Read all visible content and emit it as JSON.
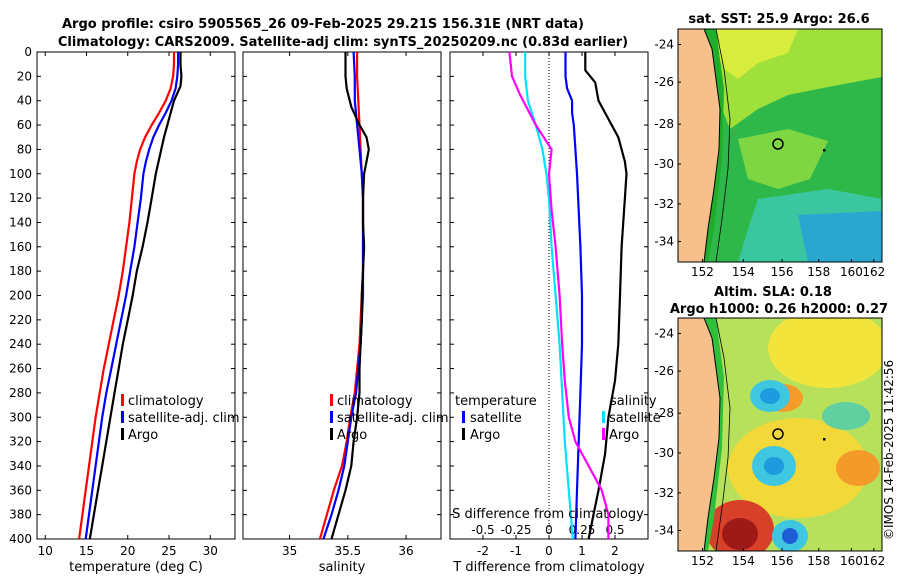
{
  "title_line1": "Argo profile: csiro 5905565_26 09-Feb-2025 29.21S 156.31E (NRT data)",
  "title_line2": "Climatology: CARS2009. Satellite-adj clim: synTS_20250209.nc (0.83d earlier)",
  "stamp": "©IMOS 14-Feb-2025 11:42:56",
  "chart_data": [
    {
      "id": "temperature",
      "type": "line",
      "xlabel": "temperature (deg C)",
      "xlim": [
        9,
        33
      ],
      "ylim": [
        0,
        400
      ],
      "xticks": [
        10,
        15,
        20,
        25,
        30
      ],
      "yticks": [
        0,
        20,
        40,
        60,
        80,
        100,
        120,
        140,
        160,
        180,
        200,
        220,
        240,
        260,
        280,
        300,
        320,
        340,
        360,
        380,
        400
      ],
      "legend": [
        "climatology",
        "satellite-adj. clim",
        "Argo"
      ],
      "series": [
        {
          "name": "climatology",
          "color": "#ff0000",
          "points": [
            [
              25.6,
              0
            ],
            [
              25.6,
              10
            ],
            [
              25.5,
              20
            ],
            [
              25.2,
              30
            ],
            [
              24.6,
              40
            ],
            [
              23.8,
              50
            ],
            [
              22.9,
              60
            ],
            [
              22.1,
              70
            ],
            [
              21.5,
              80
            ],
            [
              21.1,
              90
            ],
            [
              20.8,
              100
            ],
            [
              20.5,
              120
            ],
            [
              20.2,
              140
            ],
            [
              19.8,
              160
            ],
            [
              19.4,
              180
            ],
            [
              18.9,
              200
            ],
            [
              18.3,
              220
            ],
            [
              17.7,
              240
            ],
            [
              17.1,
              260
            ],
            [
              16.6,
              280
            ],
            [
              16.1,
              300
            ],
            [
              15.7,
              320
            ],
            [
              15.3,
              340
            ],
            [
              14.9,
              360
            ],
            [
              14.5,
              380
            ],
            [
              14.1,
              400
            ]
          ]
        },
        {
          "name": "satellite-adj. clim",
          "color": "#0000ff",
          "points": [
            [
              26.1,
              0
            ],
            [
              26.1,
              10
            ],
            [
              26.0,
              20
            ],
            [
              25.8,
              30
            ],
            [
              25.3,
              40
            ],
            [
              24.6,
              50
            ],
            [
              23.8,
              60
            ],
            [
              23.1,
              70
            ],
            [
              22.6,
              80
            ],
            [
              22.2,
              90
            ],
            [
              21.9,
              100
            ],
            [
              21.6,
              120
            ],
            [
              21.2,
              140
            ],
            [
              20.8,
              160
            ],
            [
              20.3,
              180
            ],
            [
              19.8,
              200
            ],
            [
              19.2,
              220
            ],
            [
              18.6,
              240
            ],
            [
              18.0,
              260
            ],
            [
              17.4,
              280
            ],
            [
              16.9,
              300
            ],
            [
              16.5,
              320
            ],
            [
              16.1,
              340
            ],
            [
              15.7,
              360
            ],
            [
              15.3,
              380
            ],
            [
              14.9,
              400
            ]
          ]
        },
        {
          "name": "Argo",
          "color": "#000000",
          "points": [
            [
              26.4,
              0
            ],
            [
              26.4,
              10
            ],
            [
              26.5,
              20
            ],
            [
              26.4,
              28
            ],
            [
              25.6,
              40
            ],
            [
              25.0,
              55
            ],
            [
              24.4,
              70
            ],
            [
              23.9,
              85
            ],
            [
              23.4,
              100
            ],
            [
              22.9,
              120
            ],
            [
              22.4,
              140
            ],
            [
              21.8,
              160
            ],
            [
              21.1,
              180
            ],
            [
              20.6,
              200
            ],
            [
              20.0,
              220
            ],
            [
              19.4,
              240
            ],
            [
              18.9,
              260
            ],
            [
              18.4,
              280
            ],
            [
              17.9,
              300
            ],
            [
              17.4,
              320
            ],
            [
              16.9,
              340
            ],
            [
              16.4,
              360
            ],
            [
              15.9,
              380
            ],
            [
              15.4,
              400
            ]
          ]
        }
      ]
    },
    {
      "id": "salinity",
      "type": "line",
      "xlabel": "salinity",
      "xlim": [
        34.6,
        36.3
      ],
      "ylim": [
        0,
        400
      ],
      "xticks": [
        35,
        35.5,
        36
      ],
      "legend": [
        "climatology",
        "satellite-adj. clim",
        "Argo"
      ],
      "series": [
        {
          "name": "climatology",
          "color": "#ff0000",
          "points": [
            [
              35.58,
              0
            ],
            [
              35.58,
              20
            ],
            [
              35.59,
              40
            ],
            [
              35.6,
              60
            ],
            [
              35.61,
              80
            ],
            [
              35.62,
              100
            ],
            [
              35.63,
              120
            ],
            [
              35.63,
              140
            ],
            [
              35.63,
              160
            ],
            [
              35.63,
              180
            ],
            [
              35.62,
              200
            ],
            [
              35.61,
              220
            ],
            [
              35.6,
              240
            ],
            [
              35.58,
              260
            ],
            [
              35.56,
              280
            ],
            [
              35.52,
              300
            ],
            [
              35.49,
              320
            ],
            [
              35.45,
              340
            ],
            [
              35.38,
              360
            ],
            [
              35.32,
              380
            ],
            [
              35.26,
              400
            ]
          ]
        },
        {
          "name": "satellite-adj. clim",
          "color": "#0000ff",
          "points": [
            [
              35.55,
              0
            ],
            [
              35.56,
              20
            ],
            [
              35.56,
              40
            ],
            [
              35.58,
              60
            ],
            [
              35.6,
              80
            ],
            [
              35.62,
              100
            ],
            [
              35.63,
              120
            ],
            [
              35.63,
              140
            ],
            [
              35.63,
              160
            ],
            [
              35.63,
              180
            ],
            [
              35.63,
              200
            ],
            [
              35.62,
              220
            ],
            [
              35.61,
              240
            ],
            [
              35.59,
              260
            ],
            [
              35.57,
              280
            ],
            [
              35.53,
              300
            ],
            [
              35.5,
              320
            ],
            [
              35.47,
              340
            ],
            [
              35.42,
              360
            ],
            [
              35.36,
              380
            ],
            [
              35.29,
              400
            ]
          ]
        },
        {
          "name": "Argo",
          "color": "#000000",
          "points": [
            [
              35.48,
              0
            ],
            [
              35.48,
              20
            ],
            [
              35.49,
              30
            ],
            [
              35.53,
              45
            ],
            [
              35.6,
              60
            ],
            [
              35.66,
              70
            ],
            [
              35.68,
              80
            ],
            [
              35.66,
              90
            ],
            [
              35.64,
              100
            ],
            [
              35.63,
              120
            ],
            [
              35.63,
              140
            ],
            [
              35.64,
              160
            ],
            [
              35.63,
              180
            ],
            [
              35.62,
              200
            ],
            [
              35.62,
              220
            ],
            [
              35.61,
              240
            ],
            [
              35.6,
              260
            ],
            [
              35.6,
              280
            ],
            [
              35.58,
              300
            ],
            [
              35.55,
              320
            ],
            [
              35.53,
              340
            ],
            [
              35.48,
              360
            ],
            [
              35.42,
              380
            ],
            [
              35.36,
              400
            ]
          ]
        }
      ]
    },
    {
      "id": "differences",
      "type": "line",
      "xlabel": "T difference from climatology",
      "xlabel_top": "S difference from climatology",
      "xlim": [
        -3,
        3
      ],
      "ylim": [
        0,
        400
      ],
      "xticks": [
        -2,
        -1,
        0,
        1,
        2
      ],
      "sticks": [
        -0.5,
        -0.25,
        0,
        0.25,
        0.5
      ],
      "stick_labels": [
        "-0.5",
        "-0.25",
        "0",
        "0.25",
        "0.5"
      ],
      "legend_titles": [
        "temperature",
        "salinity"
      ],
      "legend": [
        "satellite",
        "Argo",
        "satellite",
        "Argo"
      ],
      "series": [
        {
          "name": "T satellite",
          "color": "#0000ff",
          "points": [
            [
              0.5,
              0
            ],
            [
              0.5,
              20
            ],
            [
              0.55,
              30
            ],
            [
              0.7,
              40
            ],
            [
              0.7,
              50
            ],
            [
              0.75,
              60
            ],
            [
              0.8,
              80
            ],
            [
              0.85,
              100
            ],
            [
              0.9,
              130
            ],
            [
              0.95,
              160
            ],
            [
              1.0,
              200
            ],
            [
              1.0,
              240
            ],
            [
              0.95,
              280
            ],
            [
              0.9,
              320
            ],
            [
              0.85,
              360
            ],
            [
              0.8,
              400
            ]
          ]
        },
        {
          "name": "T Argo",
          "color": "#000000",
          "points": [
            [
              1.1,
              0
            ],
            [
              1.1,
              15
            ],
            [
              1.4,
              25
            ],
            [
              1.5,
              40
            ],
            [
              1.8,
              55
            ],
            [
              2.0,
              65
            ],
            [
              2.1,
              70
            ],
            [
              2.2,
              80
            ],
            [
              2.3,
              90
            ],
            [
              2.35,
              100
            ],
            [
              2.3,
              120
            ],
            [
              2.2,
              160
            ],
            [
              2.15,
              200
            ],
            [
              2.1,
              240
            ],
            [
              2.0,
              270
            ],
            [
              1.8,
              300
            ],
            [
              1.7,
              330
            ],
            [
              1.5,
              360
            ],
            [
              1.35,
              380
            ],
            [
              1.2,
              400
            ]
          ]
        },
        {
          "name": "S satellite",
          "color": "#00e0ff",
          "points": [
            [
              -0.18,
              0
            ],
            [
              -0.18,
              20
            ],
            [
              -0.16,
              40
            ],
            [
              -0.1,
              60
            ],
            [
              -0.05,
              80
            ],
            [
              -0.02,
              100
            ],
            [
              0.0,
              120
            ],
            [
              0.02,
              160
            ],
            [
              0.05,
              200
            ],
            [
              0.08,
              240
            ],
            [
              0.1,
              280
            ],
            [
              0.12,
              320
            ],
            [
              0.15,
              360
            ],
            [
              0.18,
              400
            ]
          ]
        },
        {
          "name": "S Argo",
          "color": "#ff00ff",
          "points": [
            [
              -0.3,
              0
            ],
            [
              -0.28,
              20
            ],
            [
              -0.22,
              35
            ],
            [
              -0.1,
              60
            ],
            [
              0.02,
              80
            ],
            [
              0.0,
              100
            ],
            [
              0.02,
              130
            ],
            [
              0.05,
              160
            ],
            [
              0.08,
              200
            ],
            [
              0.1,
              240
            ],
            [
              0.12,
              270
            ],
            [
              0.15,
              300
            ],
            [
              0.2,
              320
            ],
            [
              0.3,
              340
            ],
            [
              0.4,
              360
            ],
            [
              0.45,
              380
            ],
            [
              0.45,
              400
            ]
          ]
        }
      ]
    }
  ],
  "maps": [
    {
      "id": "sst",
      "title": "sat. SST: 25.9 Argo: 26.6",
      "lon_ticks": [
        "152",
        "154",
        "156",
        "158",
        "160",
        "162"
      ],
      "lat_ticks": [
        "-24",
        "-26",
        "-28",
        "-30",
        "-32",
        "-34"
      ]
    },
    {
      "id": "sla",
      "title_line1": "Altim. SLA: 0.18",
      "title_line2": "Argo h1000: 0.26 h2000: 0.27",
      "lon_ticks": [
        "152",
        "154",
        "156",
        "158",
        "160",
        "162"
      ],
      "lat_ticks": [
        "-24",
        "-26",
        "-28",
        "-30",
        "-32",
        "-34"
      ]
    }
  ]
}
